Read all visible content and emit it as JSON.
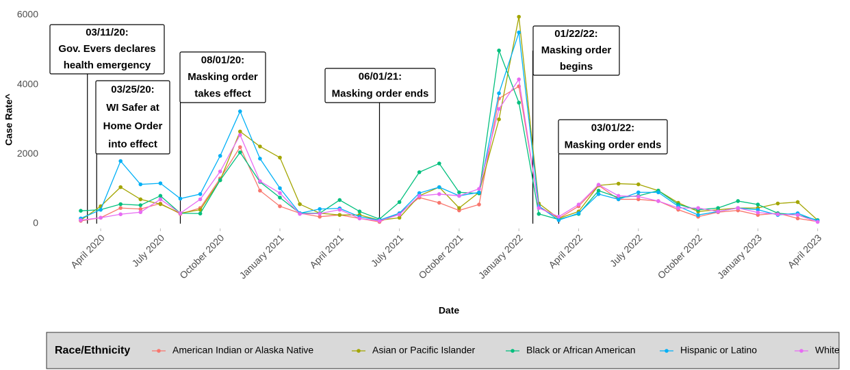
{
  "chart_data": {
    "type": "line",
    "x": [
      "2020-03",
      "2020-04",
      "2020-05",
      "2020-06",
      "2020-07",
      "2020-08",
      "2020-09",
      "2020-10",
      "2020-11",
      "2020-12",
      "2021-01",
      "2021-02",
      "2021-03",
      "2021-04",
      "2021-05",
      "2021-06",
      "2021-07",
      "2021-08",
      "2021-09",
      "2021-10",
      "2021-11",
      "2021-12",
      "2022-01",
      "2022-02",
      "2022-03",
      "2022-04",
      "2022-05",
      "2022-06",
      "2022-07",
      "2022-08",
      "2022-09",
      "2022-10",
      "2022-11",
      "2022-12",
      "2023-01",
      "2023-02",
      "2023-03",
      "2023-04"
    ],
    "series": [
      {
        "name": "American Indian or Alaska Native",
        "color": "#f8766d",
        "values": [
          80,
          170,
          450,
          420,
          580,
          280,
          450,
          1300,
          2200,
          950,
          500,
          300,
          200,
          250,
          150,
          50,
          300,
          750,
          600,
          380,
          550,
          3600,
          3950,
          500,
          150,
          500,
          1100,
          700,
          700,
          650,
          400,
          200,
          330,
          380,
          250,
          300,
          150,
          60
        ]
      },
      {
        "name": "Asian or Pacific Islander",
        "color": "#a3a500",
        "values": [
          100,
          500,
          1050,
          700,
          560,
          300,
          400,
          1250,
          2650,
          2220,
          1900,
          560,
          300,
          250,
          250,
          100,
          170,
          800,
          1050,
          450,
          900,
          3000,
          5950,
          580,
          150,
          350,
          1100,
          1150,
          1130,
          950,
          600,
          350,
          400,
          450,
          450,
          580,
          620,
          100
        ]
      },
      {
        "name": "Black or African American",
        "color": "#00bf7d",
        "values": [
          370,
          400,
          560,
          530,
          800,
          300,
          290,
          1250,
          2050,
          1200,
          750,
          300,
          300,
          680,
          350,
          130,
          620,
          1480,
          1730,
          900,
          870,
          4980,
          3480,
          280,
          120,
          280,
          950,
          750,
          800,
          950,
          550,
          400,
          450,
          650,
          550,
          300,
          250,
          100
        ]
      },
      {
        "name": "Hispanic or Latino",
        "color": "#00b0f6",
        "values": [
          150,
          400,
          1800,
          1130,
          1160,
          720,
          850,
          1950,
          3230,
          1870,
          1020,
          300,
          420,
          440,
          200,
          100,
          300,
          880,
          1050,
          800,
          900,
          3750,
          5500,
          500,
          100,
          300,
          850,
          700,
          900,
          900,
          500,
          250,
          350,
          450,
          400,
          250,
          300,
          80
        ]
      },
      {
        "name": "White",
        "color": "#e76bf3",
        "values": [
          100,
          170,
          270,
          330,
          700,
          300,
          700,
          1500,
          2550,
          1220,
          880,
          280,
          290,
          400,
          150,
          80,
          260,
          800,
          850,
          800,
          1000,
          3300,
          4150,
          450,
          200,
          550,
          1120,
          800,
          780,
          650,
          450,
          450,
          350,
          450,
          320,
          270,
          250,
          50
        ]
      }
    ],
    "ylim": [
      0,
      6000
    ],
    "yticks": [
      0,
      2000,
      4000,
      6000
    ],
    "xticks": [
      {
        "value": "2020-04",
        "label": "April 2020"
      },
      {
        "value": "2020-07",
        "label": "July 2020"
      },
      {
        "value": "2020-10",
        "label": "October 2020"
      },
      {
        "value": "2021-01",
        "label": "January 2021"
      },
      {
        "value": "2021-04",
        "label": "April 2021"
      },
      {
        "value": "2021-07",
        "label": "July 2021"
      },
      {
        "value": "2021-10",
        "label": "October 2021"
      },
      {
        "value": "2022-01",
        "label": "January 2022"
      },
      {
        "value": "2022-04",
        "label": "April 2022"
      },
      {
        "value": "2022-07",
        "label": "July 2022"
      },
      {
        "value": "2022-10",
        "label": "October 2022"
      },
      {
        "value": "2023-01",
        "label": "January 2023"
      },
      {
        "value": "2023-04",
        "label": "April 2023"
      }
    ],
    "xlabel": "Date",
    "ylabel": "Case Rate^",
    "legend_title": "Race/Ethnicity",
    "legend": "bottom",
    "grid": false,
    "annotations": [
      {
        "lines": [
          "03/11/20:",
          "Gov. Evers declares",
          "health emergency"
        ]
      },
      {
        "lines": [
          "03/25/20:",
          "WI Safer at",
          "Home Order",
          "into effect"
        ]
      },
      {
        "lines": [
          "08/01/20:",
          "Masking order",
          "takes effect"
        ]
      },
      {
        "lines": [
          "06/01/21:",
          "Masking order ends"
        ]
      },
      {
        "lines": [
          "01/22/22:",
          "Masking order",
          "begins"
        ]
      },
      {
        "lines": [
          "03/01/22:",
          "Masking order ends"
        ]
      }
    ]
  }
}
